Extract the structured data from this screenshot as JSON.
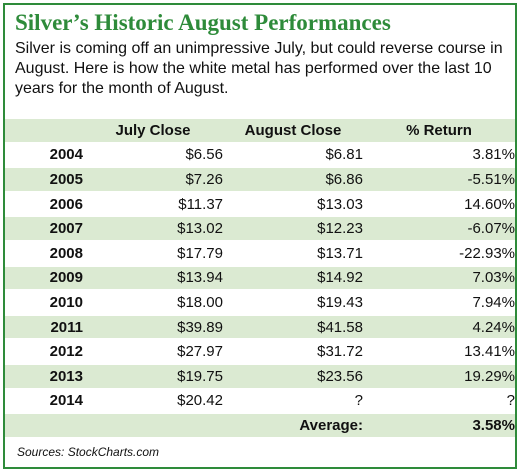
{
  "title": "Silver’s Historic August Performances",
  "subtitle": "Silver is coming off an unimpressive July, but could reverse course in August. Here is how the white metal has performed over the last 10 years for the month of August.",
  "source": "Sources: StockCharts.com",
  "colors": {
    "accent": "#2e8b3a",
    "band": "#dbead2"
  },
  "chart_data": {
    "type": "table",
    "columns": [
      "",
      "July Close",
      "August  Close",
      "% Return"
    ],
    "rows": [
      [
        "2004",
        "$6.56",
        "$6.81",
        "3.81%"
      ],
      [
        "2005",
        "$7.26",
        "$6.86",
        "-5.51%"
      ],
      [
        "2006",
        "$11.37",
        "$13.03",
        "14.60%"
      ],
      [
        "2007",
        "$13.02",
        "$12.23",
        "-6.07%"
      ],
      [
        "2008",
        "$17.79",
        "$13.71",
        "-22.93%"
      ],
      [
        "2009",
        "$13.94",
        "$14.92",
        "7.03%"
      ],
      [
        "2010",
        "$18.00",
        "$19.43",
        "7.94%"
      ],
      [
        "2011",
        "$39.89",
        "$41.58",
        "4.24%"
      ],
      [
        "2012",
        "$27.97",
        "$31.72",
        "13.41%"
      ],
      [
        "2013",
        "$19.75",
        "$23.56",
        "19.29%"
      ],
      [
        "2014",
        "$20.42",
        "?",
        "?"
      ]
    ],
    "summary": {
      "label": "Average:",
      "value": "3.58%"
    }
  }
}
